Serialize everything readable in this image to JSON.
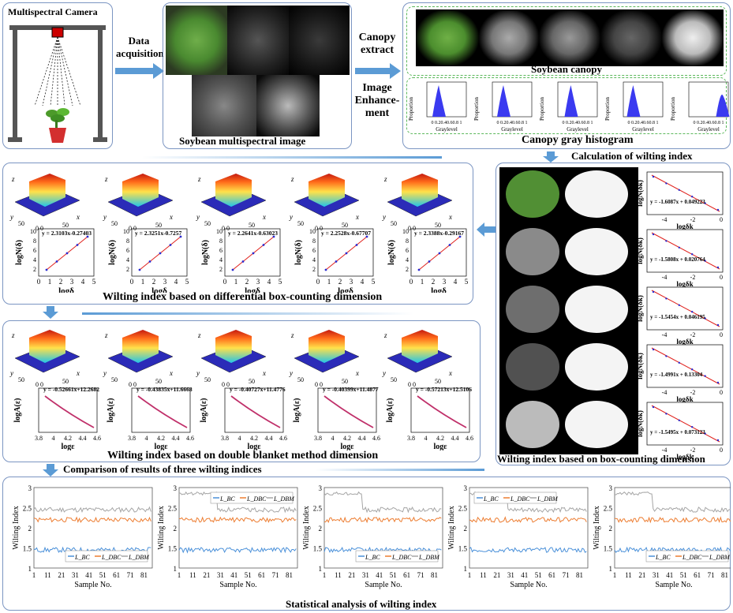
{
  "panels": {
    "camera": {
      "title": "Multispectral Camera"
    },
    "multispectral": {
      "caption": "Soybean multispectral image"
    },
    "canopy": {
      "canopy_caption": "Soybean canopy",
      "histogram_caption": "Canopy gray histogram"
    },
    "wilting_box": {
      "title": "Calculation of wilting index",
      "caption": "Wilting index based on box-counting dimension"
    },
    "dbc": {
      "caption": "Wilting index based on differential box-counting dimension"
    },
    "dbm": {
      "caption": "Wilting index based on double blanket method dimension"
    },
    "compare": {
      "title": "Comparison of results of three wilting indices",
      "caption": "Statistical analysis of wilting index"
    }
  },
  "steps": {
    "data_acquisition": [
      "Data",
      "acquisition"
    ],
    "canopy_extract": [
      "Canopy",
      "extract"
    ],
    "image_enhancement": [
      "Image",
      "Enhance-",
      "ment"
    ]
  },
  "histogram": {
    "ylabel": "Proportion",
    "xlabel": "Graylevel",
    "ticks": "0 0.20.40.60.8 1"
  },
  "box_fits": [
    "y = -1.6087x + 0.049223",
    "y = -1.5808x + 0.020764",
    "y = -1.5454x + 0.046195",
    "y = -1.4991x + 0.13304",
    "y = -1.5495x + 0.073123"
  ],
  "box_axes": {
    "ylabel": "logN(δk)",
    "xlabel": "logδk",
    "xticks": [
      "-4",
      "-2",
      "0"
    ]
  },
  "dbc_fits": [
    "y = 2.3103x-0.27403",
    "y = 2.3251x-0.7257",
    "y = 2.2641x-0.63023",
    "y = 2.2528x-0.67707",
    "y = 2.3388x-0.29167"
  ],
  "dbc_axes": {
    "ylabel": "logN(δ)",
    "xlabel": "logδ",
    "xticks": [
      "0",
      "1",
      "2",
      "3",
      "4",
      "5"
    ],
    "yticks": [
      "10",
      "8",
      "6",
      "4",
      "2"
    ]
  },
  "dbm_fits": [
    "y = -0.52661x+12.2682",
    "y = -0.43835x+11.6668",
    "y = -0.40727x+11.4776",
    "y = -0.40399x+11.4877",
    "y = -0.57213x+12.5106"
  ],
  "dbm_axes": {
    "ylabel": "logA(ε)",
    "xlabel": "logε",
    "xticks": [
      "3.8",
      "4",
      "4.2",
      "4.4",
      "4.6"
    ]
  },
  "surface_axes": {
    "z": "z",
    "x": "x",
    "y": "y",
    "t1": "50",
    "t2": "0 0",
    "t3": "50"
  },
  "compare_axes": {
    "ylabel": "Wilting Index",
    "xlabel": "Sample No.",
    "xticks": [
      "1",
      "11",
      "21",
      "31",
      "41",
      "51",
      "61",
      "71",
      "81"
    ],
    "yticks": [
      "3",
      "2.5",
      "2",
      "1.5",
      "1"
    ]
  },
  "legend": {
    "bc": "L_BC",
    "dbc": "L_DBC",
    "dbm": "L_DBM"
  },
  "colors": {
    "panel_border": "#7b95c2",
    "arrow": "#5b9bd5",
    "bc_line": "#4a90d9",
    "dbc_line": "#ed7d31",
    "dbm_line": "#a5a5a5",
    "fit_line": "#e0201b",
    "hist": "#3a3af0",
    "leaf_green": "#5a9e3a"
  }
}
